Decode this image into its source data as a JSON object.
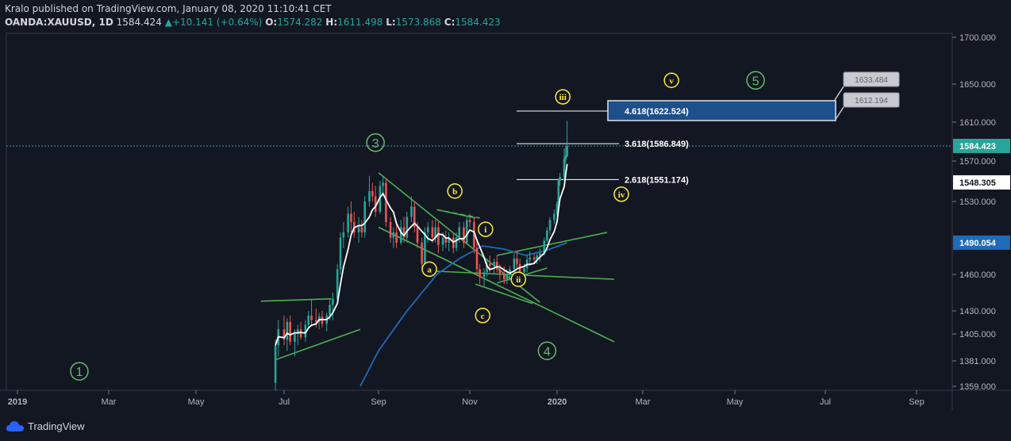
{
  "header": {
    "line1": "Kralo published on TradingView.com, January 08, 2020 11:10:41 CET",
    "symbol": "OANDA:XAUUSD, 1D",
    "last": "1584.424",
    "change": "+10.141 (+0.64%)",
    "o_label": "O:",
    "o_val": "1574.282",
    "h_label": "H:",
    "h_val": "1611.498",
    "l_label": "L:",
    "l_val": "1573.868",
    "c_label": "C:",
    "c_val": "1584.423"
  },
  "footer": {
    "brand": "TradingView"
  },
  "colors": {
    "background": "#131722",
    "up": "#26a69a",
    "down": "#ef5350",
    "sma_fast": "#ffffff",
    "sma_slow": "#1e6bb8",
    "trendline": "#4caf50",
    "wave_major": "#66bb6a",
    "wave_minor": "#ffeb3b",
    "target_box": "#1d4f8a"
  },
  "chart_data": {
    "type": "candlestick",
    "symbol": "OANDA:XAUUSD",
    "interval": "1D",
    "x_ticks": [
      "2019",
      "Mar",
      "May",
      "Jul",
      "Sep",
      "Nov",
      "2020",
      "Mar",
      "May",
      "Jul",
      "Sep"
    ],
    "y_ticks": [
      "1700.000",
      "1650.000",
      "1610.000",
      "1570.000",
      "1530.000",
      "1460.000",
      "1430.000",
      "1405.000",
      "1381.000",
      "1359.000"
    ],
    "price_badges": [
      {
        "value": "1584.423",
        "kind": "last"
      },
      {
        "value": "1548.305",
        "kind": "ma_fast"
      },
      {
        "value": "1490.054",
        "kind": "ma_slow"
      }
    ],
    "fib_levels": [
      {
        "label": "4.618(1622.524)",
        "price": 1622.524
      },
      {
        "label": "3.618(1586.849)",
        "price": 1586.849
      },
      {
        "label": "2.618(1551.174)",
        "price": 1551.174
      }
    ],
    "callouts": [
      {
        "value": "1633.484"
      },
      {
        "value": "1612.194"
      }
    ],
    "wave_labels_major": [
      {
        "text": "1",
        "date": "2019-02-10",
        "price": 1372
      },
      {
        "text": "3",
        "date": "2019-08-30",
        "price": 1588
      },
      {
        "text": "4",
        "date": "2019-12-25",
        "price": 1390
      },
      {
        "text": "5",
        "date": "2020-05-15",
        "price": 1654
      }
    ],
    "wave_labels_minor": [
      {
        "text": "a",
        "date": "2019-10-05",
        "price": 1465
      },
      {
        "text": "b",
        "date": "2019-10-22",
        "price": 1540
      },
      {
        "text": "c",
        "date": "2019-11-10",
        "price": 1425
      },
      {
        "text": "i",
        "date": "2019-11-12",
        "price": 1503
      },
      {
        "text": "ii",
        "date": "2019-12-05",
        "price": 1456
      },
      {
        "text": "iii",
        "date": "2020-01-05",
        "price": 1637
      },
      {
        "text": "iv",
        "date": "2020-02-15",
        "price": 1537
      },
      {
        "text": "v",
        "date": "2020-03-20",
        "price": 1654
      }
    ],
    "trendlines": [
      {
        "from": {
          "date": "2019-06-15",
          "price": 1438
        },
        "to": {
          "date": "2019-08-01",
          "price": 1440
        }
      },
      {
        "from": {
          "date": "2019-06-25",
          "price": 1382
        },
        "to": {
          "date": "2019-08-20",
          "price": 1410
        }
      },
      {
        "from": {
          "date": "2019-09-01",
          "price": 1558
        },
        "to": {
          "date": "2019-12-20",
          "price": 1437
        }
      },
      {
        "from": {
          "date": "2019-10-10",
          "price": 1522
        },
        "to": {
          "date": "2019-11-05",
          "price": 1514
        }
      },
      {
        "from": {
          "date": "2019-09-01",
          "price": 1505
        },
        "to": {
          "date": "2020-02-10",
          "price": 1398
        }
      },
      {
        "from": {
          "date": "2019-10-10",
          "price": 1463
        },
        "to": {
          "date": "2020-02-10",
          "price": 1456
        }
      },
      {
        "from": {
          "date": "2019-11-20",
          "price": 1478
        },
        "to": {
          "date": "2020-02-05",
          "price": 1500
        }
      },
      {
        "from": {
          "date": "2019-11-20",
          "price": 1453
        },
        "to": {
          "date": "2019-12-25",
          "price": 1466
        }
      },
      {
        "from": {
          "date": "2019-11-05",
          "price": 1452
        },
        "to": {
          "date": "2019-12-15",
          "price": 1436
        }
      }
    ],
    "candles": [
      [
        "2019-06-25",
        1362,
        1400,
        1355,
        1395
      ],
      [
        "2019-06-27",
        1395,
        1420,
        1385,
        1410
      ],
      [
        "2019-07-01",
        1410,
        1425,
        1395,
        1400
      ],
      [
        "2019-07-03",
        1400,
        1422,
        1390,
        1418
      ],
      [
        "2019-07-05",
        1418,
        1425,
        1395,
        1398
      ],
      [
        "2019-07-08",
        1398,
        1410,
        1385,
        1405
      ],
      [
        "2019-07-10",
        1405,
        1415,
        1395,
        1410
      ],
      [
        "2019-07-12",
        1410,
        1418,
        1400,
        1402
      ],
      [
        "2019-07-15",
        1402,
        1420,
        1398,
        1415
      ],
      [
        "2019-07-17",
        1415,
        1430,
        1410,
        1425
      ],
      [
        "2019-07-19",
        1425,
        1440,
        1415,
        1420
      ],
      [
        "2019-07-22",
        1420,
        1432,
        1412,
        1418
      ],
      [
        "2019-07-24",
        1418,
        1428,
        1410,
        1424
      ],
      [
        "2019-07-26",
        1424,
        1430,
        1412,
        1416
      ],
      [
        "2019-07-29",
        1416,
        1428,
        1408,
        1425
      ],
      [
        "2019-07-31",
        1425,
        1440,
        1420,
        1435
      ],
      [
        "2019-08-02",
        1435,
        1445,
        1420,
        1440
      ],
      [
        "2019-08-05",
        1440,
        1470,
        1438,
        1465
      ],
      [
        "2019-08-07",
        1465,
        1500,
        1460,
        1495
      ],
      [
        "2019-08-09",
        1495,
        1510,
        1485,
        1500
      ],
      [
        "2019-08-12",
        1500,
        1525,
        1495,
        1518
      ],
      [
        "2019-08-14",
        1518,
        1530,
        1500,
        1510
      ],
      [
        "2019-08-16",
        1510,
        1520,
        1495,
        1500
      ],
      [
        "2019-08-19",
        1500,
        1515,
        1490,
        1505
      ],
      [
        "2019-08-21",
        1505,
        1512,
        1495,
        1500
      ],
      [
        "2019-08-23",
        1500,
        1535,
        1495,
        1530
      ],
      [
        "2019-08-26",
        1530,
        1555,
        1525,
        1540
      ],
      [
        "2019-08-28",
        1540,
        1548,
        1530,
        1535
      ],
      [
        "2019-08-30",
        1535,
        1545,
        1515,
        1520
      ],
      [
        "2019-09-02",
        1520,
        1550,
        1518,
        1545
      ],
      [
        "2019-09-04",
        1545,
        1555,
        1535,
        1548
      ],
      [
        "2019-09-06",
        1548,
        1552,
        1505,
        1510
      ],
      [
        "2019-09-09",
        1510,
        1515,
        1490,
        1495
      ],
      [
        "2019-09-11",
        1495,
        1505,
        1485,
        1500
      ],
      [
        "2019-09-13",
        1500,
        1510,
        1485,
        1490
      ],
      [
        "2019-09-16",
        1490,
        1512,
        1488,
        1505
      ],
      [
        "2019-09-18",
        1505,
        1515,
        1490,
        1495
      ],
      [
        "2019-09-20",
        1495,
        1520,
        1490,
        1515
      ],
      [
        "2019-09-23",
        1515,
        1535,
        1510,
        1525
      ],
      [
        "2019-09-25",
        1525,
        1530,
        1500,
        1505
      ],
      [
        "2019-09-27",
        1505,
        1510,
        1485,
        1490
      ],
      [
        "2019-09-30",
        1490,
        1495,
        1465,
        1470
      ],
      [
        "2019-10-02",
        1470,
        1505,
        1468,
        1500
      ],
      [
        "2019-10-04",
        1500,
        1510,
        1490,
        1505
      ],
      [
        "2019-10-07",
        1505,
        1512,
        1490,
        1495
      ],
      [
        "2019-10-09",
        1495,
        1512,
        1490,
        1505
      ],
      [
        "2019-10-11",
        1505,
        1510,
        1480,
        1488
      ],
      [
        "2019-10-14",
        1488,
        1500,
        1482,
        1495
      ],
      [
        "2019-10-16",
        1495,
        1502,
        1485,
        1490
      ],
      [
        "2019-10-18",
        1490,
        1500,
        1482,
        1495
      ],
      [
        "2019-10-21",
        1495,
        1500,
        1480,
        1485
      ],
      [
        "2019-10-23",
        1485,
        1500,
        1482,
        1495
      ],
      [
        "2019-10-25",
        1495,
        1510,
        1490,
        1505
      ],
      [
        "2019-10-28",
        1505,
        1510,
        1485,
        1490
      ],
      [
        "2019-10-30",
        1490,
        1515,
        1488,
        1512
      ],
      [
        "2019-11-01",
        1512,
        1518,
        1505,
        1510
      ],
      [
        "2019-11-04",
        1510,
        1515,
        1480,
        1485
      ],
      [
        "2019-11-06",
        1485,
        1492,
        1460,
        1465
      ],
      [
        "2019-11-08",
        1465,
        1470,
        1452,
        1458
      ],
      [
        "2019-11-11",
        1458,
        1466,
        1450,
        1462
      ],
      [
        "2019-11-13",
        1462,
        1475,
        1458,
        1470
      ],
      [
        "2019-11-15",
        1470,
        1478,
        1462,
        1468
      ],
      [
        "2019-11-18",
        1468,
        1475,
        1460,
        1472
      ],
      [
        "2019-11-20",
        1472,
        1478,
        1462,
        1465
      ],
      [
        "2019-11-22",
        1465,
        1470,
        1455,
        1460
      ],
      [
        "2019-11-25",
        1460,
        1468,
        1452,
        1456
      ],
      [
        "2019-11-27",
        1456,
        1465,
        1452,
        1460
      ],
      [
        "2019-11-29",
        1460,
        1468,
        1455,
        1465
      ],
      [
        "2019-12-02",
        1465,
        1480,
        1460,
        1475
      ],
      [
        "2019-12-04",
        1475,
        1482,
        1465,
        1470
      ],
      [
        "2019-12-06",
        1470,
        1475,
        1458,
        1462
      ],
      [
        "2019-12-09",
        1462,
        1470,
        1458,
        1466
      ],
      [
        "2019-12-11",
        1466,
        1478,
        1462,
        1474
      ],
      [
        "2019-12-13",
        1474,
        1482,
        1468,
        1476
      ],
      [
        "2019-12-16",
        1476,
        1480,
        1470,
        1474
      ],
      [
        "2019-12-18",
        1474,
        1480,
        1470,
        1478
      ],
      [
        "2019-12-20",
        1478,
        1485,
        1472,
        1480
      ],
      [
        "2019-12-23",
        1480,
        1495,
        1478,
        1492
      ],
      [
        "2019-12-25",
        1492,
        1505,
        1490,
        1502
      ],
      [
        "2019-12-27",
        1502,
        1515,
        1498,
        1512
      ],
      [
        "2019-12-30",
        1512,
        1522,
        1508,
        1518
      ],
      [
        "2020-01-01",
        1518,
        1530,
        1515,
        1528
      ],
      [
        "2020-01-02",
        1528,
        1552,
        1525,
        1550
      ],
      [
        "2020-01-03",
        1550,
        1558,
        1545,
        1554
      ],
      [
        "2020-01-06",
        1554,
        1582,
        1550,
        1572
      ],
      [
        "2020-01-07",
        1572,
        1584,
        1568,
        1575
      ],
      [
        "2020-01-08",
        1574.282,
        1611.498,
        1573.868,
        1584.423
      ]
    ]
  }
}
